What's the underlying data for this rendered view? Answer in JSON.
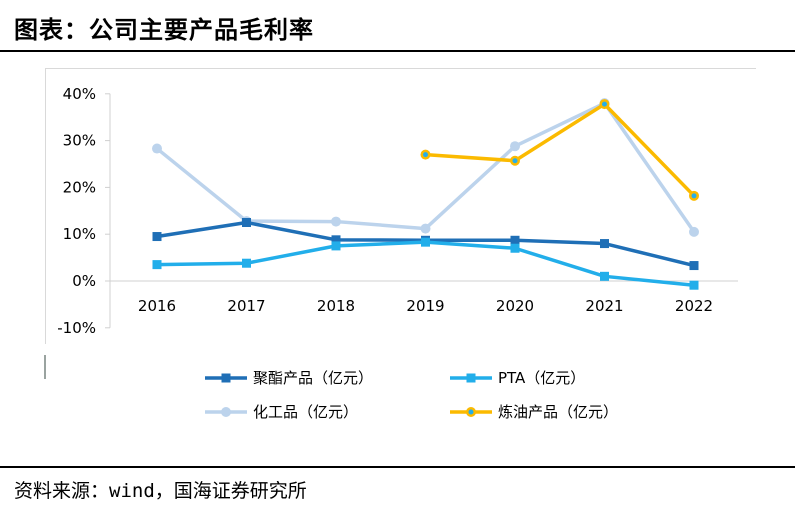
{
  "header": {
    "title": "图表：公司主要产品毛利率"
  },
  "footer": {
    "source": "资料来源：wind，国海证券研究所"
  },
  "chart_data": {
    "type": "line",
    "categories": [
      "2016",
      "2017",
      "2018",
      "2019",
      "2020",
      "2021",
      "2022"
    ],
    "y_ticks": [
      "-10%",
      "0%",
      "10%",
      "20%",
      "30%",
      "40%"
    ],
    "ylim": [
      -10,
      40
    ],
    "grid": false,
    "legend_position": "bottom",
    "series": [
      {
        "name": "聚酯产品（亿元）",
        "color": "#1f6fb6",
        "marker": "square",
        "values": [
          9.5,
          12.5,
          8.8,
          8.7,
          8.7,
          8.0,
          3.3
        ]
      },
      {
        "name": "PTA（亿元）",
        "color": "#22aeea",
        "marker": "square",
        "values": [
          3.5,
          3.8,
          7.5,
          8.3,
          7.0,
          1.0,
          -0.9
        ]
      },
      {
        "name": "化工品（亿元）",
        "color": "#bcd3ec",
        "marker": "circle",
        "values": [
          28.3,
          12.8,
          12.7,
          11.2,
          28.8,
          38.0,
          10.5
        ]
      },
      {
        "name": "炼油产品（亿元）",
        "color": "#fbba00",
        "marker": "circle-dot",
        "values": [
          null,
          null,
          null,
          27.0,
          25.7,
          37.8,
          18.2
        ]
      }
    ]
  }
}
